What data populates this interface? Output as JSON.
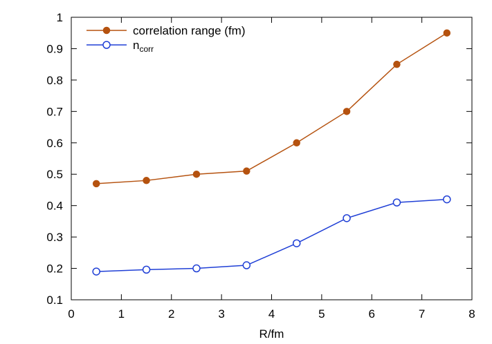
{
  "chart_data": {
    "type": "line",
    "title": "",
    "xlabel": "R/fm",
    "ylabel": "",
    "xlim": [
      0,
      8
    ],
    "ylim": [
      0.1,
      1
    ],
    "xticks": [
      "0",
      "1",
      "2",
      "3",
      "4",
      "5",
      "6",
      "7",
      "8"
    ],
    "yticks": [
      "0.1",
      "0.2",
      "0.3",
      "0.4",
      "0.5",
      "0.6",
      "0.7",
      "0.8",
      "0.9",
      "1"
    ],
    "grid": false,
    "legend_position": "top-left",
    "x": [
      0.5,
      1.5,
      2.5,
      3.5,
      4.5,
      5.5,
      6.5,
      7.5
    ],
    "series": [
      {
        "name": "correlation range (fm)",
        "color": "#b5520f",
        "marker": "filled-circle",
        "values": [
          0.47,
          0.48,
          0.5,
          0.51,
          0.6,
          0.7,
          0.85,
          0.95
        ]
      },
      {
        "name": "n",
        "name_subscript": "corr",
        "color": "#1f3fd6",
        "marker": "open-circle",
        "values": [
          0.19,
          0.196,
          0.2,
          0.21,
          0.28,
          0.36,
          0.41,
          0.42
        ]
      }
    ]
  }
}
